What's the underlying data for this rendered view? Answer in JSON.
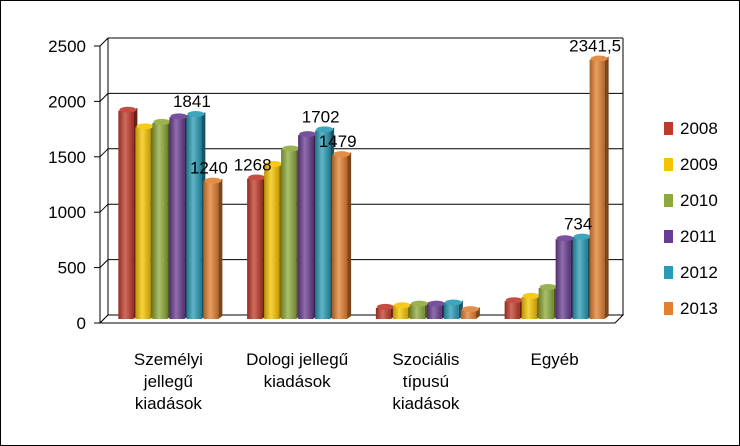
{
  "chart_data": {
    "type": "bar",
    "title": "",
    "xlabel": "",
    "ylabel": "",
    "ylim": [
      0,
      2500
    ],
    "yticks": [
      0,
      500,
      1000,
      1500,
      2000,
      2500
    ],
    "grid": true,
    "legend_position": "right",
    "categories": [
      [
        "Személyi",
        "jellegű",
        "kiadások"
      ],
      [
        "Dologi jellegű",
        "kiadások"
      ],
      [
        "Szociális",
        "típusú",
        "kiadások"
      ],
      [
        "Egyéb"
      ]
    ],
    "series": [
      {
        "name": "2008",
        "color": "#c0392b",
        "values": [
          1880,
          1268,
          100,
          160
        ]
      },
      {
        "name": "2009",
        "color": "#f5c400",
        "values": [
          1730,
          1390,
          115,
          200
        ]
      },
      {
        "name": "2010",
        "color": "#8faa3c",
        "values": [
          1770,
          1530,
          130,
          280
        ]
      },
      {
        "name": "2011",
        "color": "#6a3d92",
        "values": [
          1820,
          1660,
          130,
          720
        ]
      },
      {
        "name": "2012",
        "color": "#2a9bb5",
        "values": [
          1841,
          1702,
          140,
          734
        ]
      },
      {
        "name": "2013",
        "color": "#e2802f",
        "values": [
          1240,
          1479,
          80,
          2341.5
        ]
      }
    ],
    "data_labels": [
      {
        "series": 4,
        "category": 0,
        "text": "1841"
      },
      {
        "series": 5,
        "category": 0,
        "text": "1240"
      },
      {
        "series": 0,
        "category": 1,
        "text": "1268"
      },
      {
        "series": 4,
        "category": 1,
        "text": "1702"
      },
      {
        "series": 5,
        "category": 1,
        "text": "1479"
      },
      {
        "series": 4,
        "category": 3,
        "text": "734"
      },
      {
        "series": 5,
        "category": 3,
        "text": "2341,5"
      }
    ]
  }
}
